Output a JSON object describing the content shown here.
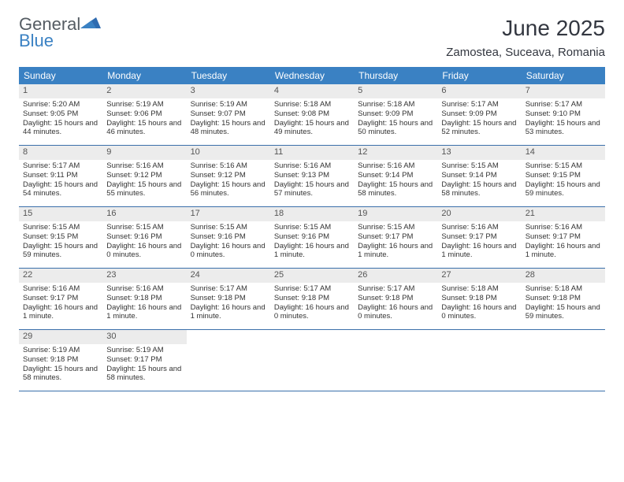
{
  "logo": {
    "text1": "General",
    "text2": "Blue",
    "color1": "#555c63",
    "color2": "#3a81c3"
  },
  "title": "June 2025",
  "location": "Zamostea, Suceava, Romania",
  "colors": {
    "header_bg": "#3a81c3",
    "header_text": "#ffffff",
    "daynum_bg": "#ececec",
    "daynum_text": "#555555",
    "border": "#3a6faa",
    "body_text": "#333333"
  },
  "dow": [
    "Sunday",
    "Monday",
    "Tuesday",
    "Wednesday",
    "Thursday",
    "Friday",
    "Saturday"
  ],
  "days": [
    {
      "n": "1",
      "sr": "5:20 AM",
      "ss": "9:05 PM",
      "dl": "15 hours and 44 minutes."
    },
    {
      "n": "2",
      "sr": "5:19 AM",
      "ss": "9:06 PM",
      "dl": "15 hours and 46 minutes."
    },
    {
      "n": "3",
      "sr": "5:19 AM",
      "ss": "9:07 PM",
      "dl": "15 hours and 48 minutes."
    },
    {
      "n": "4",
      "sr": "5:18 AM",
      "ss": "9:08 PM",
      "dl": "15 hours and 49 minutes."
    },
    {
      "n": "5",
      "sr": "5:18 AM",
      "ss": "9:09 PM",
      "dl": "15 hours and 50 minutes."
    },
    {
      "n": "6",
      "sr": "5:17 AM",
      "ss": "9:09 PM",
      "dl": "15 hours and 52 minutes."
    },
    {
      "n": "7",
      "sr": "5:17 AM",
      "ss": "9:10 PM",
      "dl": "15 hours and 53 minutes."
    },
    {
      "n": "8",
      "sr": "5:17 AM",
      "ss": "9:11 PM",
      "dl": "15 hours and 54 minutes."
    },
    {
      "n": "9",
      "sr": "5:16 AM",
      "ss": "9:12 PM",
      "dl": "15 hours and 55 minutes."
    },
    {
      "n": "10",
      "sr": "5:16 AM",
      "ss": "9:12 PM",
      "dl": "15 hours and 56 minutes."
    },
    {
      "n": "11",
      "sr": "5:16 AM",
      "ss": "9:13 PM",
      "dl": "15 hours and 57 minutes."
    },
    {
      "n": "12",
      "sr": "5:16 AM",
      "ss": "9:14 PM",
      "dl": "15 hours and 58 minutes."
    },
    {
      "n": "13",
      "sr": "5:15 AM",
      "ss": "9:14 PM",
      "dl": "15 hours and 58 minutes."
    },
    {
      "n": "14",
      "sr": "5:15 AM",
      "ss": "9:15 PM",
      "dl": "15 hours and 59 minutes."
    },
    {
      "n": "15",
      "sr": "5:15 AM",
      "ss": "9:15 PM",
      "dl": "15 hours and 59 minutes."
    },
    {
      "n": "16",
      "sr": "5:15 AM",
      "ss": "9:16 PM",
      "dl": "16 hours and 0 minutes."
    },
    {
      "n": "17",
      "sr": "5:15 AM",
      "ss": "9:16 PM",
      "dl": "16 hours and 0 minutes."
    },
    {
      "n": "18",
      "sr": "5:15 AM",
      "ss": "9:16 PM",
      "dl": "16 hours and 1 minute."
    },
    {
      "n": "19",
      "sr": "5:15 AM",
      "ss": "9:17 PM",
      "dl": "16 hours and 1 minute."
    },
    {
      "n": "20",
      "sr": "5:16 AM",
      "ss": "9:17 PM",
      "dl": "16 hours and 1 minute."
    },
    {
      "n": "21",
      "sr": "5:16 AM",
      "ss": "9:17 PM",
      "dl": "16 hours and 1 minute."
    },
    {
      "n": "22",
      "sr": "5:16 AM",
      "ss": "9:17 PM",
      "dl": "16 hours and 1 minute."
    },
    {
      "n": "23",
      "sr": "5:16 AM",
      "ss": "9:18 PM",
      "dl": "16 hours and 1 minute."
    },
    {
      "n": "24",
      "sr": "5:17 AM",
      "ss": "9:18 PM",
      "dl": "16 hours and 1 minute."
    },
    {
      "n": "25",
      "sr": "5:17 AM",
      "ss": "9:18 PM",
      "dl": "16 hours and 0 minutes."
    },
    {
      "n": "26",
      "sr": "5:17 AM",
      "ss": "9:18 PM",
      "dl": "16 hours and 0 minutes."
    },
    {
      "n": "27",
      "sr": "5:18 AM",
      "ss": "9:18 PM",
      "dl": "16 hours and 0 minutes."
    },
    {
      "n": "28",
      "sr": "5:18 AM",
      "ss": "9:18 PM",
      "dl": "15 hours and 59 minutes."
    },
    {
      "n": "29",
      "sr": "5:19 AM",
      "ss": "9:18 PM",
      "dl": "15 hours and 58 minutes."
    },
    {
      "n": "30",
      "sr": "5:19 AM",
      "ss": "9:17 PM",
      "dl": "15 hours and 58 minutes."
    }
  ],
  "labels": {
    "sunrise": "Sunrise:",
    "sunset": "Sunset:",
    "daylight": "Daylight:"
  },
  "layout": {
    "start_dow": 0,
    "weeks": 5
  }
}
